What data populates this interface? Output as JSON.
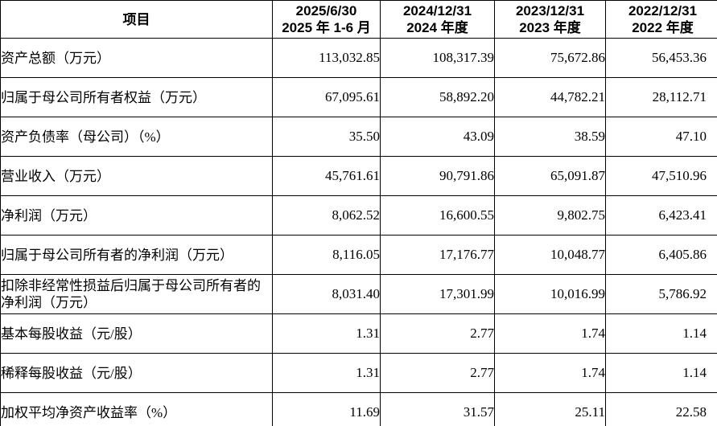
{
  "appearance": {
    "background_color": "#ffffff",
    "text_color": "#000000",
    "border_color": "#000000"
  },
  "table": {
    "header": {
      "item_label": "项目",
      "columns": [
        {
          "line1": "2025/6/30",
          "line2": "2025 年 1-6 月"
        },
        {
          "line1": "2024/12/31",
          "line2": "2024 年度"
        },
        {
          "line1": "2023/12/31",
          "line2": "2023 年度"
        },
        {
          "line1": "2022/12/31",
          "line2": "2022 年度"
        }
      ]
    },
    "rows": [
      {
        "label": "资产总额（万元）",
        "values": [
          "113,032.85",
          "108,317.39",
          "75,672.86",
          "56,453.36"
        ]
      },
      {
        "label": "归属于母公司所有者权益（万元）",
        "values": [
          "67,095.61",
          "58,892.20",
          "44,782.21",
          "28,112.71"
        ]
      },
      {
        "label": "资产负债率（母公司）（%）",
        "values": [
          "35.50",
          "43.09",
          "38.59",
          "47.10"
        ]
      },
      {
        "label": "营业收入（万元）",
        "values": [
          "45,761.61",
          "90,791.86",
          "65,091.87",
          "47,510.96"
        ]
      },
      {
        "label": "净利润（万元）",
        "values": [
          "8,062.52",
          "16,600.55",
          "9,802.75",
          "6,423.41"
        ]
      },
      {
        "label": "归属于母公司所有者的净利润（万元）",
        "values": [
          "8,116.05",
          "17,176.77",
          "10,048.77",
          "6,405.86"
        ]
      },
      {
        "label": "扣除非经常性损益后归属于母公司所有者的净利润（万元）",
        "values": [
          "8,031.40",
          "17,301.99",
          "10,016.99",
          "5,786.92"
        ]
      },
      {
        "label": "基本每股收益（元/股）",
        "values": [
          "1.31",
          "2.77",
          "1.74",
          "1.14"
        ]
      },
      {
        "label": "稀释每股收益（元/股）",
        "values": [
          "1.31",
          "2.77",
          "1.74",
          "1.14"
        ]
      },
      {
        "label": "加权平均净资产收益率（%）",
        "values": [
          "11.69",
          "31.57",
          "25.11",
          "22.58"
        ]
      }
    ]
  }
}
